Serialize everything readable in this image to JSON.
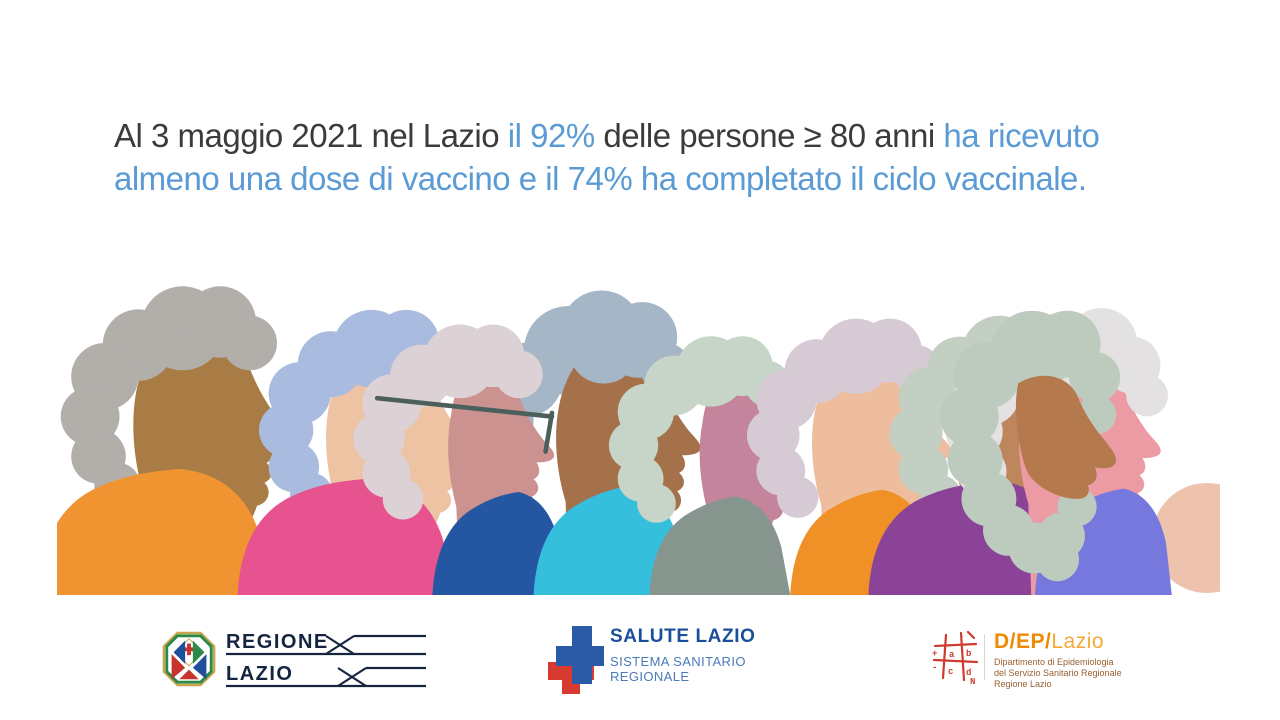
{
  "slide": {
    "background": "#ffffff",
    "description": "Infographic slide: COVID-19 vaccination coverage among people aged 80+ in Lazio region, with illustration of elderly people profiles and institutional logos"
  },
  "headline": {
    "colors": {
      "dark": "#3b3b3b",
      "blue": "#5b9bd5"
    },
    "full_text": "Al 3 maggio 2021 nel Lazio il 92% delle persone ≥ 80 anni ha ricevuto almeno una dose di vaccino e il 74% ha completato il ciclo vaccinale.",
    "lines": [
      [
        {
          "t": "Al 3 maggio 2021 nel Lazio ",
          "c": "dark"
        },
        {
          "t": "il 92% ",
          "c": "blue"
        },
        {
          "t": "delle persone ≥ 80 anni ",
          "c": "dark"
        },
        {
          "t": "ha ricevuto",
          "c": "blue"
        }
      ],
      [
        {
          "t": "almeno una dose di vaccino e il 74% ha completato il ciclo vaccinale.",
          "c": "blue"
        }
      ]
    ],
    "key_figures": {
      "date": "3 maggio 2021",
      "first_dose_pct": "92%",
      "full_cycle_pct": "74%",
      "age_group": "≥ 80 anni"
    }
  },
  "illustration": {
    "name": "elderly-people-profiles",
    "background_blob": "#edc3ad",
    "people": [
      {
        "label": "person-1",
        "skin": "#a87c44",
        "hair": "#b2afab",
        "shirt": "#ef9430"
      },
      {
        "label": "person-2",
        "skin": "#eec3a4",
        "hair": "#a9bbdf",
        "shirt": "#e7538e"
      },
      {
        "label": "person-3",
        "skin": "#cc9290",
        "hair": "#dcd2d5",
        "shirt": "#2456a2",
        "glasses": "#4b5f5d"
      },
      {
        "label": "person-4",
        "skin": "#a5714b",
        "hair": "#a5b6c6",
        "shirt": "#36bedd"
      },
      {
        "label": "person-5",
        "skin": "#c4849b",
        "hair": "#c6d5c7",
        "shirt": "#87958f"
      },
      {
        "label": "person-6",
        "skin": "#eebd9e",
        "hair": "#d6cbd4",
        "shirt": "#ef9127"
      },
      {
        "label": "person-7",
        "skin": "#bd865c",
        "hair": "#c3cfc2",
        "shirt": "#8a4397"
      },
      {
        "label": "person-8",
        "skin": "#b5794e",
        "hair": "#bccbbd",
        "shirt": null
      },
      {
        "label": "person-9",
        "skin": "#ec9aa3",
        "hair": "#e3e1e2",
        "shirt": "#7678de"
      }
    ]
  },
  "footer": {
    "regione": {
      "line1": "REGIONE",
      "line2": "LAZIO",
      "text_color": "#16253f",
      "emblem_colors": {
        "border_green": "#2a8a46",
        "gold": "#caa54b",
        "red": "#c8332e",
        "blue": "#1d4f9e"
      }
    },
    "salute": {
      "title": "SALUTE LAZIO",
      "sub1": "SISTEMA SANITARIO",
      "sub2": "REGIONALE",
      "title_color": "#1b4e9b",
      "sub_color": "#4b7ab8",
      "cross_blue": "#2b5aa7",
      "cross_red": "#d63a30"
    },
    "dep": {
      "brand_bold": "D/EP/",
      "brand_light": "Lazio",
      "sub1": "Dipartimento di Epidemiologia",
      "sub2": "del Servizio Sanitario Regionale",
      "sub3": "Regione Lazio",
      "bold_color": "#ef8a00",
      "light_color": "#f5a833",
      "sub_color": "#9a5f2e",
      "symbol_color": "#cf3b2e"
    }
  }
}
